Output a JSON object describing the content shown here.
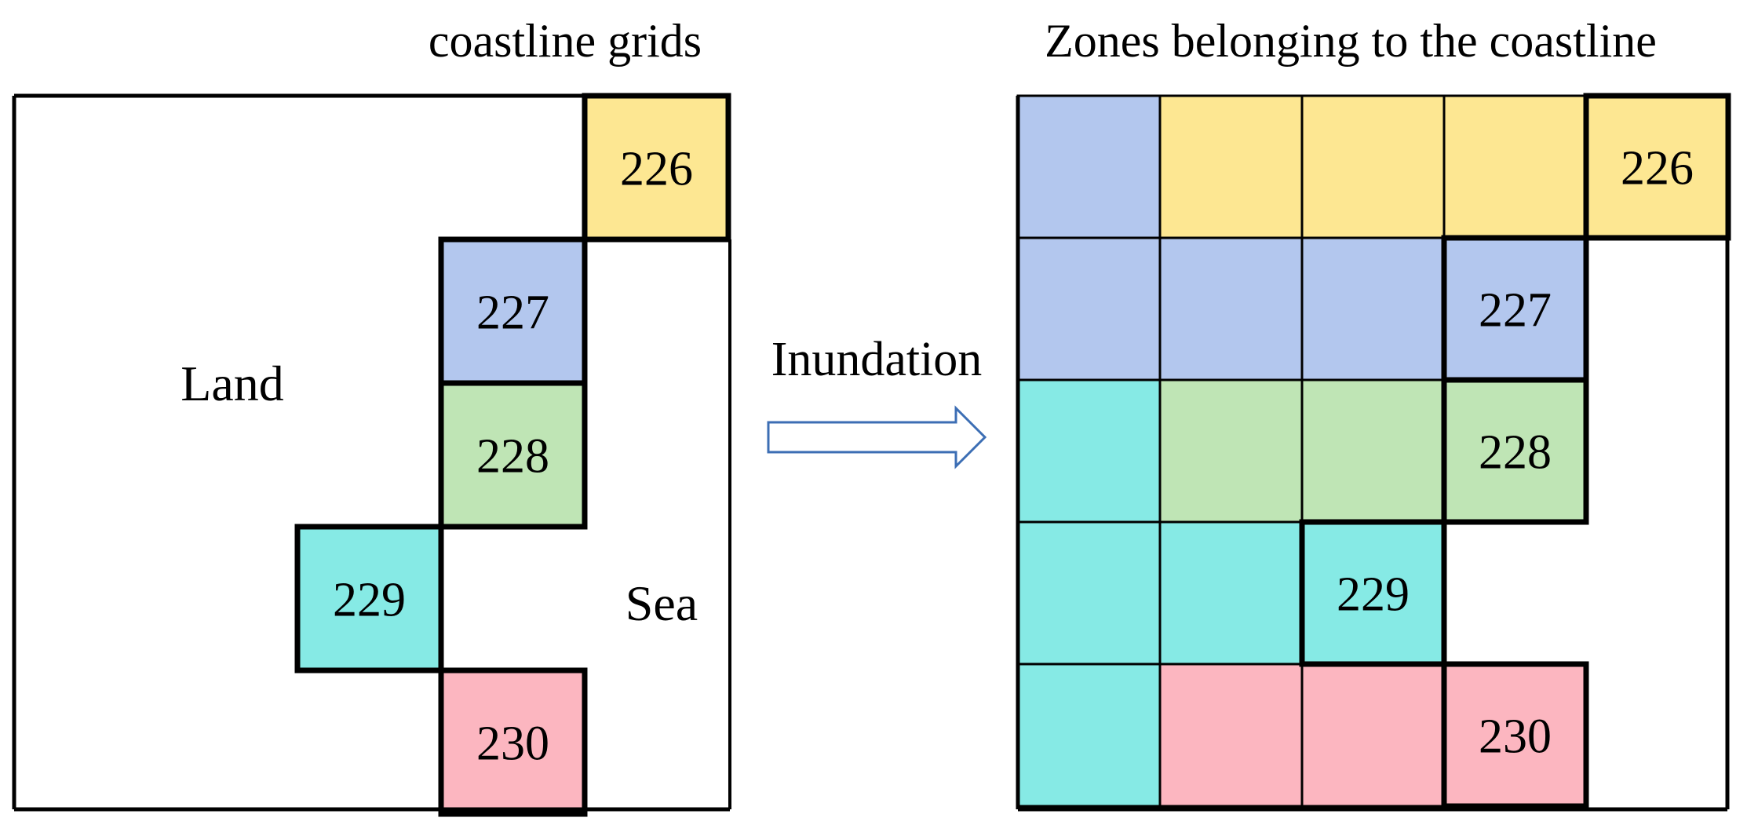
{
  "left_panel": {
    "title": "coastline grids",
    "land_label": "Land",
    "sea_label": "Sea",
    "cells": [
      {
        "id": "226",
        "zone": "226"
      },
      {
        "id": "227",
        "zone": "227"
      },
      {
        "id": "228",
        "zone": "228"
      },
      {
        "id": "229",
        "zone": "229"
      },
      {
        "id": "230",
        "zone": "230"
      }
    ]
  },
  "arrow_label": "Inundation",
  "right_panel": {
    "title": "Zones belonging to the coastline",
    "coastline_labels": [
      "226",
      "227",
      "228",
      "229",
      "230"
    ],
    "grid_rows": [
      [
        "227",
        "226",
        "226",
        "226",
        "226"
      ],
      [
        "227",
        "227",
        "227",
        "227",
        null
      ],
      [
        "229",
        "228",
        "228",
        "228",
        null
      ],
      [
        "229",
        "229",
        "229",
        null,
        null
      ],
      [
        "229",
        "230",
        "230",
        "230",
        null
      ]
    ]
  },
  "zone_colors": {
    "226": "#FDE792",
    "227": "#B3C7EE",
    "228": "#BFE5B5",
    "229": "#86EAE5",
    "230": "#FCB6C0"
  }
}
